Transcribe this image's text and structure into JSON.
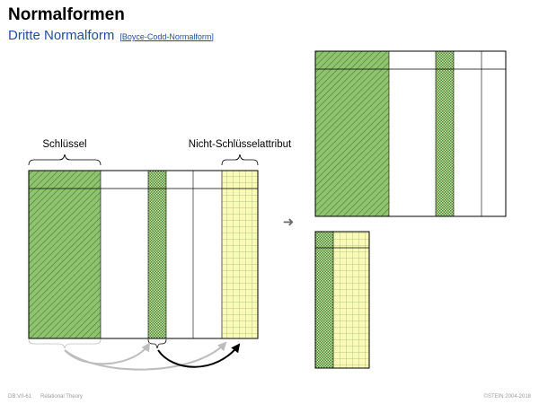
{
  "slide": {
    "title": "Normalformen",
    "subtitle": "Dritte Normalform",
    "reference": "Boyce-Codd-Normalform"
  },
  "diagram": {
    "key_label": "Schlüssel",
    "nonkey_label": "Nicht-Schlüsselattribut",
    "arrow_symbol": "➜"
  },
  "footer": {
    "code": "DB:VII-61",
    "section": "Relational Theory",
    "copyright": "©STEIN 2004-2018"
  },
  "colors": {
    "key_fill": "#8fc36f",
    "hatch_line": "#3f7a26",
    "dotted_fill": "#c7e0a5",
    "grid_fill": "#fbf9b8",
    "grid_line": "#9bbf6c",
    "title_blue": "#1f4ea1"
  }
}
